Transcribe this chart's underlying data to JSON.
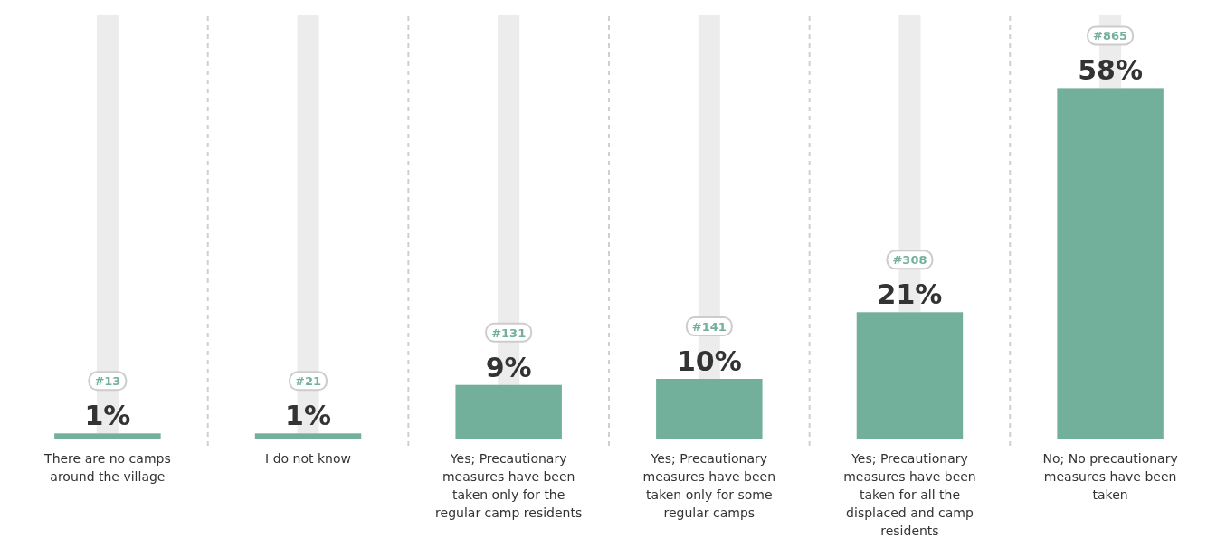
{
  "chart_data": {
    "type": "bar",
    "categories": [
      "There are no camps around the village",
      "I do not know",
      "Yes; Precautionary measures have been taken only for the regular camp residents",
      "Yes; Precautionary measures have been taken only for some regular camps",
      "Yes; Precautionary measures have been taken for all the displaced and camp residents",
      "No; No precautionary measures have been taken"
    ],
    "values": [
      1,
      1,
      9,
      10,
      21,
      58
    ],
    "value_labels": [
      "1%",
      "1%",
      "9%",
      "10%",
      "21%",
      "58%"
    ],
    "color": "#72b09b",
    "ylim": [
      0,
      70
    ],
    "relative": false,
    "grid": "x",
    "annotations": [
      "#13",
      "#21",
      "#131",
      "#141",
      "#308",
      "#865"
    ]
  }
}
